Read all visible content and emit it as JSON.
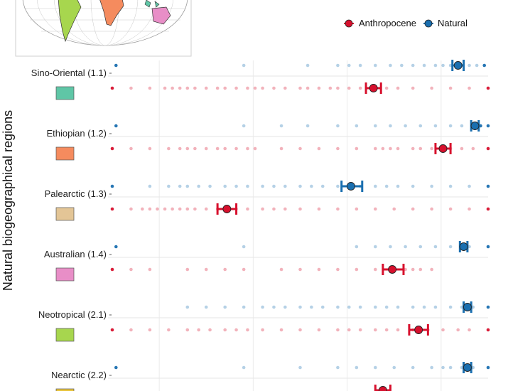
{
  "chart_data": {
    "type": "scatter",
    "title": "",
    "xlabel": "",
    "ylabel": "Natural biogeographical regions",
    "xlim": [
      0,
      1
    ],
    "grid": true,
    "legend_position": "top-right",
    "series": [
      {
        "name": "Anthropocene",
        "color": "#d7102d"
      },
      {
        "name": "Natural",
        "color": "#1a6fb0"
      }
    ],
    "regions": [
      {
        "label": "Sino-Oriental (1.1)",
        "swatch_color": "#5fc6a6",
        "natural": {
          "mean": 0.92,
          "ci": [
            0.905,
            0.935
          ],
          "points": [
            0.01,
            0.35,
            0.52,
            0.6,
            0.63,
            0.66,
            0.7,
            0.74,
            0.77,
            0.8,
            0.83,
            0.86,
            0.88,
            0.9,
            0.93,
            0.95,
            0.97,
            0.99
          ]
        },
        "anthropocene": {
          "mean": 0.695,
          "ci": [
            0.675,
            0.715
          ],
          "points": [
            0.0,
            0.05,
            0.1,
            0.14,
            0.16,
            0.18,
            0.2,
            0.22,
            0.25,
            0.28,
            0.3,
            0.33,
            0.36,
            0.38,
            0.4,
            0.43,
            0.46,
            0.5,
            0.52,
            0.55,
            0.58,
            0.6,
            0.63,
            0.66,
            0.7,
            0.73,
            0.76,
            0.8,
            0.85,
            0.9,
            0.95,
            1.0
          ]
        }
      },
      {
        "label": "Ethiopian (1.2)",
        "swatch_color": "#f58b5e",
        "natural": {
          "mean": 0.965,
          "ci": [
            0.955,
            0.975
          ],
          "points": [
            0.01,
            0.35,
            0.45,
            0.52,
            0.6,
            0.65,
            0.7,
            0.74,
            0.78,
            0.82,
            0.86,
            0.9,
            0.93,
            0.96,
            0.98,
            1.0
          ]
        },
        "anthropocene": {
          "mean": 0.88,
          "ci": [
            0.86,
            0.9
          ],
          "points": [
            0.0,
            0.05,
            0.1,
            0.15,
            0.18,
            0.2,
            0.22,
            0.25,
            0.28,
            0.3,
            0.33,
            0.36,
            0.38,
            0.45,
            0.5,
            0.55,
            0.6,
            0.65,
            0.7,
            0.72,
            0.74,
            0.76,
            0.8,
            0.82,
            0.85,
            0.88,
            0.9,
            0.93,
            0.96,
            1.0
          ]
        }
      },
      {
        "label": "Palearctic (1.3)",
        "swatch_color": "#e3c596",
        "natural": {
          "mean": 0.635,
          "ci": [
            0.61,
            0.665
          ],
          "points": [
            0.0,
            0.1,
            0.15,
            0.18,
            0.2,
            0.23,
            0.26,
            0.3,
            0.33,
            0.36,
            0.4,
            0.43,
            0.46,
            0.5,
            0.53,
            0.56,
            0.6,
            0.63,
            0.66,
            0.7,
            0.73,
            0.76,
            0.8,
            0.85,
            0.9,
            0.95,
            1.0
          ]
        },
        "anthropocene": {
          "mean": 0.305,
          "ci": [
            0.28,
            0.33
          ],
          "points": [
            0.0,
            0.05,
            0.08,
            0.1,
            0.12,
            0.14,
            0.16,
            0.18,
            0.2,
            0.22,
            0.25,
            0.28,
            0.3,
            0.33,
            0.36,
            0.4,
            0.43,
            0.46,
            0.5,
            0.55,
            0.6,
            0.65,
            0.7,
            0.75,
            0.8,
            0.85,
            0.9,
            0.95,
            1.0
          ]
        }
      },
      {
        "label": "Australian (1.4)",
        "swatch_color": "#e88ec7",
        "natural": {
          "mean": 0.935,
          "ci": [
            0.925,
            0.945
          ],
          "points": [
            0.01,
            0.35,
            0.65,
            0.7,
            0.74,
            0.78,
            0.82,
            0.86,
            0.9,
            0.95,
            1.0
          ]
        },
        "anthropocene": {
          "mean": 0.745,
          "ci": [
            0.72,
            0.775
          ],
          "points": [
            0.0,
            0.05,
            0.1,
            0.2,
            0.25,
            0.3,
            0.35,
            0.45,
            0.5,
            0.55,
            0.6,
            0.65,
            0.7,
            0.74,
            0.78,
            0.8,
            0.82,
            0.85
          ]
        }
      },
      {
        "label": "Neotropical (2.1)",
        "swatch_color": "#a7d64e",
        "natural": {
          "mean": 0.945,
          "ci": [
            0.935,
            0.955
          ],
          "points": [
            0.2,
            0.25,
            0.3,
            0.35,
            0.4,
            0.43,
            0.46,
            0.5,
            0.53,
            0.56,
            0.6,
            0.63,
            0.66,
            0.7,
            0.73,
            0.76,
            0.8,
            0.83,
            0.86,
            0.9,
            0.93,
            0.96,
            1.0
          ]
        },
        "anthropocene": {
          "mean": 0.815,
          "ci": [
            0.79,
            0.84
          ],
          "points": [
            0.0,
            0.05,
            0.1,
            0.15,
            0.2,
            0.23,
            0.26,
            0.3,
            0.33,
            0.36,
            0.4,
            0.45,
            0.5,
            0.55,
            0.6,
            0.63,
            0.66,
            0.7,
            0.73,
            0.76,
            0.8,
            0.84,
            0.88,
            0.92,
            0.95,
            1.0
          ]
        }
      },
      {
        "label": "Nearctic (2.2)",
        "swatch_color": "#e8c33a",
        "natural": {
          "mean": 0.945,
          "ci": [
            0.935,
            0.955
          ],
          "points": [
            0.01,
            0.35,
            0.5,
            0.6,
            0.65,
            0.7,
            0.75,
            0.8,
            0.85,
            0.88,
            0.9,
            0.93,
            0.96,
            1.0
          ]
        },
        "anthropocene": {
          "mean": 0.72,
          "ci": [
            0.7,
            0.74
          ],
          "points": []
        }
      }
    ]
  }
}
